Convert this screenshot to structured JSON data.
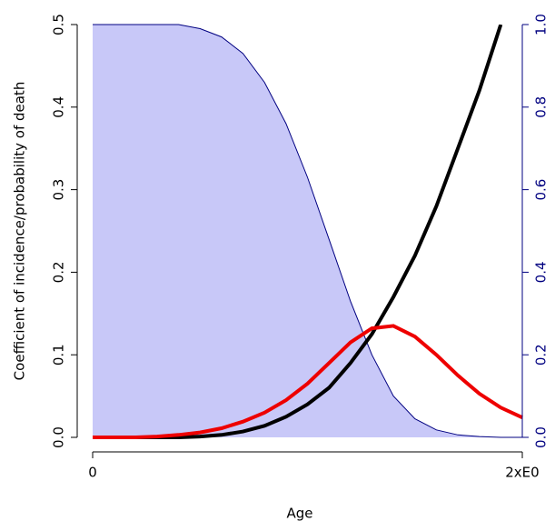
{
  "chart_data": {
    "type": "line",
    "xlabel": "Age",
    "ylabel": "Coefficient of incidence/probability of death",
    "x": [
      0,
      0.1,
      0.2,
      0.3,
      0.4,
      0.5,
      0.6,
      0.7,
      0.8,
      0.9,
      1.0,
      1.1,
      1.2,
      1.3,
      1.4,
      1.5,
      1.6,
      1.7,
      1.8,
      1.9,
      2.0
    ],
    "xlim": [
      0,
      2
    ],
    "xticks": [
      0,
      {
        "value": 2,
        "label": "2xE0"
      }
    ],
    "ylim": [
      0,
      0.5
    ],
    "yticks": [
      {
        "value": 0,
        "label": "0.0"
      },
      0.1,
      0.2,
      0.3,
      0.4,
      0.5
    ],
    "y2lim": [
      0,
      1
    ],
    "y2ticks": [
      {
        "value": 0,
        "label": "0.0"
      },
      0.2,
      0.4,
      0.6,
      0.8,
      {
        "value": 1,
        "label": "1.0"
      }
    ],
    "y2color": "#000080",
    "series": [
      {
        "kind": "area",
        "axis": "y2",
        "color": "#000080",
        "fill": "#c8c8f8",
        "values": [
          1.0,
          1.0,
          1.0,
          1.0,
          1.0,
          0.99,
          0.97,
          0.93,
          0.86,
          0.76,
          0.63,
          0.48,
          0.33,
          0.2,
          0.1,
          0.045,
          0.018,
          0.006,
          0.002,
          0,
          0
        ]
      },
      {
        "kind": "line",
        "color": "#000000",
        "values": [
          0,
          0,
          0,
          0,
          0,
          0.001,
          0.003,
          0.007,
          0.014,
          0.025,
          0.04,
          0.06,
          0.09,
          0.125,
          0.17,
          0.22,
          0.28,
          0.35,
          0.42,
          0.5,
          null
        ]
      },
      {
        "kind": "line",
        "color": "#ee0000",
        "values": [
          0,
          0,
          0,
          0.001,
          0.003,
          0.006,
          0.011,
          0.019,
          0.03,
          0.045,
          0.065,
          0.09,
          0.115,
          0.132,
          0.135,
          0.122,
          0.1,
          0.075,
          0.053,
          0.036,
          0.024
        ]
      }
    ]
  }
}
